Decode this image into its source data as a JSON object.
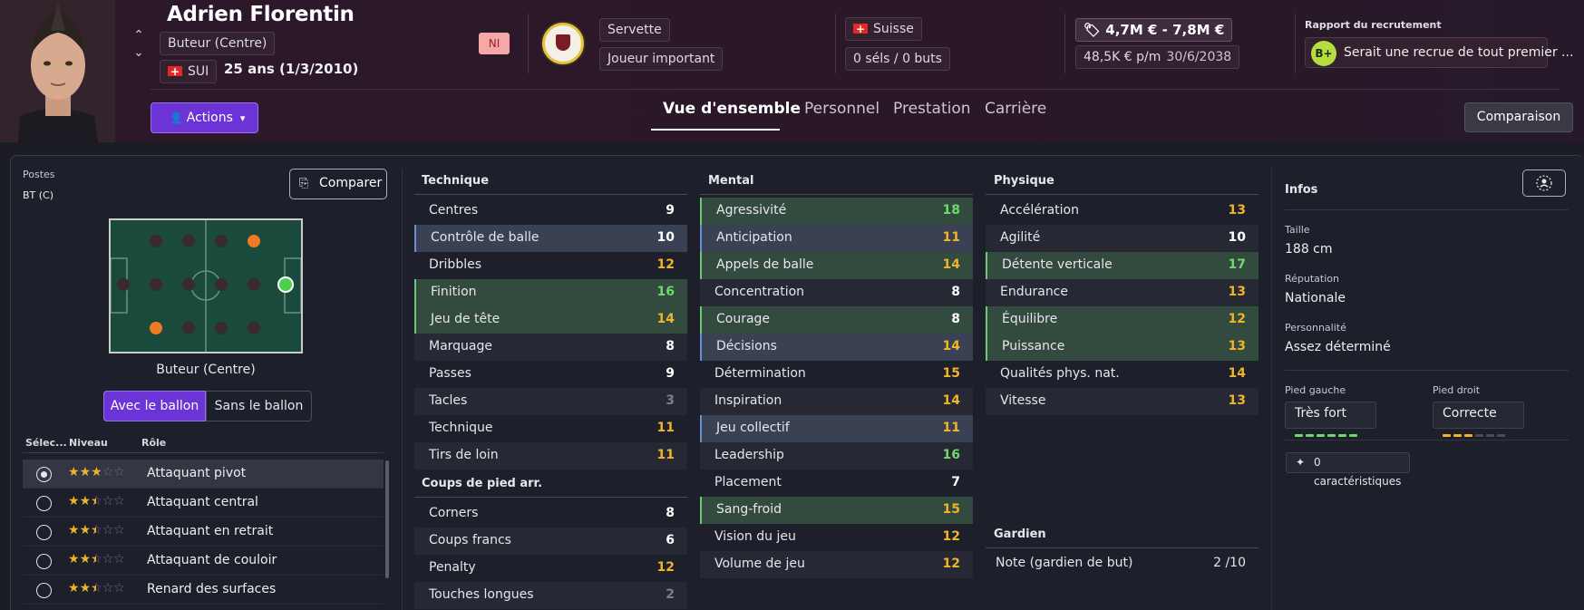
{
  "header": {
    "name": "Adrien Florentin",
    "position": "Buteur (Centre)",
    "nationality_code": "SUI",
    "age": "25 ans (1/3/2010)",
    "badge": "NI",
    "club": "Servette",
    "squad_status": "Joueur important",
    "nation": "Suisse",
    "caps": "0 séls / 0 buts",
    "value_range": "4,7M € - 7,8M €",
    "wage": "48,5K € p/m",
    "contract_end": "30/6/2038",
    "scout_title": "Rapport du recrutement",
    "scout_grade": "B+",
    "scout_text": "Serait une recrue de tout premier ...",
    "actions_label": "Actions",
    "compare_label": "Comparaison",
    "tabs": [
      "Vue d'ensemble",
      "Personnel",
      "Prestation",
      "Carrière"
    ]
  },
  "positions": {
    "title": "Postes",
    "value": "BT (C)",
    "compare_button": "Comparer",
    "pitch_label": "Buteur (Centre)",
    "toggle_with": "Avec le ballon",
    "toggle_without": "Sans le ballon",
    "col_select": "Sélec...",
    "col_level": "Niveau",
    "col_role": "Rôle",
    "roles": [
      {
        "name": "Attaquant pivot",
        "stars": 3,
        "selected": true
      },
      {
        "name": "Attaquant central",
        "stars": 2.5,
        "selected": false
      },
      {
        "name": "Attaquant en retrait",
        "stars": 2.5,
        "selected": false
      },
      {
        "name": "Attaquant de couloir",
        "stars": 2.5,
        "selected": false
      },
      {
        "name": "Renard des surfaces",
        "stars": 2.5,
        "selected": false
      }
    ]
  },
  "technique": {
    "title": "Technique",
    "attrs": [
      {
        "name": "Centres",
        "value": "9"
      },
      {
        "name": "Contrôle de balle",
        "value": "10"
      },
      {
        "name": "Dribbles",
        "value": "12"
      },
      {
        "name": "Finition",
        "value": "16"
      },
      {
        "name": "Jeu de tête",
        "value": "14"
      },
      {
        "name": "Marquage",
        "value": "8"
      },
      {
        "name": "Passes",
        "value": "9"
      },
      {
        "name": "Tacles",
        "value": "3"
      },
      {
        "name": "Technique",
        "value": "11"
      },
      {
        "name": "Tirs de loin",
        "value": "11"
      }
    ]
  },
  "set_pieces": {
    "title": "Coups de pied arr.",
    "attrs": [
      {
        "name": "Corners",
        "value": "8"
      },
      {
        "name": "Coups francs",
        "value": "6"
      },
      {
        "name": "Penalty",
        "value": "12"
      },
      {
        "name": "Touches longues",
        "value": "2"
      }
    ]
  },
  "mental": {
    "title": "Mental",
    "attrs": [
      {
        "name": "Agressivité",
        "value": "18"
      },
      {
        "name": "Anticipation",
        "value": "11"
      },
      {
        "name": "Appels de balle",
        "value": "14"
      },
      {
        "name": "Concentration",
        "value": "8"
      },
      {
        "name": "Courage",
        "value": "8"
      },
      {
        "name": "Décisions",
        "value": "14"
      },
      {
        "name": "Détermination",
        "value": "15"
      },
      {
        "name": "Inspiration",
        "value": "14"
      },
      {
        "name": "Jeu collectif",
        "value": "11"
      },
      {
        "name": "Leadership",
        "value": "16"
      },
      {
        "name": "Placement",
        "value": "7"
      },
      {
        "name": "Sang-froid",
        "value": "15"
      },
      {
        "name": "Vision du jeu",
        "value": "12"
      },
      {
        "name": "Volume de jeu",
        "value": "12"
      }
    ]
  },
  "physical": {
    "title": "Physique",
    "attrs": [
      {
        "name": "Accélération",
        "value": "13"
      },
      {
        "name": "Agilité",
        "value": "10"
      },
      {
        "name": "Détente verticale",
        "value": "17"
      },
      {
        "name": "Endurance",
        "value": "13"
      },
      {
        "name": "Équilibre",
        "value": "12"
      },
      {
        "name": "Puissance",
        "value": "13"
      },
      {
        "name": "Qualités phys. nat.",
        "value": "14"
      },
      {
        "name": "Vitesse",
        "value": "13"
      }
    ]
  },
  "goalkeeper": {
    "title": "Gardien",
    "label": "Note (gardien de but)",
    "value": "2 /10"
  },
  "infos": {
    "title": "Infos",
    "height_label": "Taille",
    "height": "188 cm",
    "reputation_label": "Réputation",
    "reputation": "Nationale",
    "personality_label": "Personnalité",
    "personality": "Assez déterminé",
    "left_foot_label": "Pied gauche",
    "left_foot": "Très fort",
    "left_foot_level": 6,
    "right_foot_label": "Pied droit",
    "right_foot": "Correcte",
    "right_foot_level": 3,
    "traits": "0 caractéristiques"
  },
  "colors": {
    "accent": "#6c34d6",
    "value_high": "#6fd96f",
    "value_mid": "#f0b429",
    "value_low": "#7c7e8a"
  }
}
